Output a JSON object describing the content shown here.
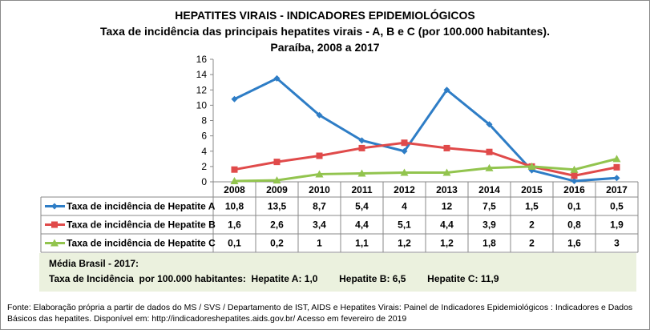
{
  "title": "HEPATITES VIRAIS - INDICADORES EPIDEMIOLÓGICOS",
  "subtitle": "Taxa de incidência das principais hepatites virais - A, B e C (por 100.000 habitantes).",
  "subtitle2": "Paraíba, 2008 a 2017",
  "chart_data": {
    "type": "line",
    "categories": [
      "2008",
      "2009",
      "2010",
      "2011",
      "2012",
      "2013",
      "2014",
      "2015",
      "2016",
      "2017"
    ],
    "ylim": [
      0,
      16
    ],
    "yticks": [
      "0",
      "2",
      "4",
      "6",
      "8",
      "10",
      "12",
      "14",
      "16"
    ],
    "legend": "data-table",
    "series": [
      {
        "name": "Taxa de incidência de Hepatite A",
        "color": "#2e7dc6",
        "marker": "diamond",
        "values": [
          10.8,
          13.5,
          8.7,
          5.4,
          4,
          12,
          7.5,
          1.5,
          0.1,
          0.5
        ],
        "labels": [
          "10,8",
          "13,5",
          "8,7",
          "5,4",
          "4",
          "12",
          "7,5",
          "1,5",
          "0,1",
          "0,5"
        ]
      },
      {
        "name": "Taxa de incidência de Hepatite B",
        "color": "#e04a4a",
        "marker": "square",
        "values": [
          1.6,
          2.6,
          3.4,
          4.4,
          5.1,
          4.4,
          3.9,
          2,
          0.8,
          1.9
        ],
        "labels": [
          "1,6",
          "2,6",
          "3,4",
          "4,4",
          "5,1",
          "4,4",
          "3,9",
          "2",
          "0,8",
          "1,9"
        ]
      },
      {
        "name": "Taxa de incidência de Hepatite C",
        "color": "#92c44e",
        "marker": "triangle",
        "values": [
          0.1,
          0.2,
          1,
          1.1,
          1.2,
          1.2,
          1.8,
          2,
          1.6,
          3
        ],
        "labels": [
          "0,1",
          "0,2",
          "1",
          "1,1",
          "1,2",
          "1,2",
          "1,8",
          "2",
          "1,6",
          "3"
        ]
      }
    ]
  },
  "media": {
    "line1": "Média Brasil - 2017:",
    "line2": "Taxa de Incidência  por 100.000 habitantes:  Hepatite A: 1,0        Hepatite B: 6,5        Hepatite C: 11,9"
  },
  "fonte": "Fonte: Elaboração própria a partir de dados do MS / SVS / Departamento de IST, AIDS e Hepatites Virais:  Painel de Indicadores Epidemiológicos : Indicadores e Dados Básicos das hepatites.  Disponível em: http://indicadoreshepatites.aids.gov.br/     Acesso em fevereiro de 2019"
}
